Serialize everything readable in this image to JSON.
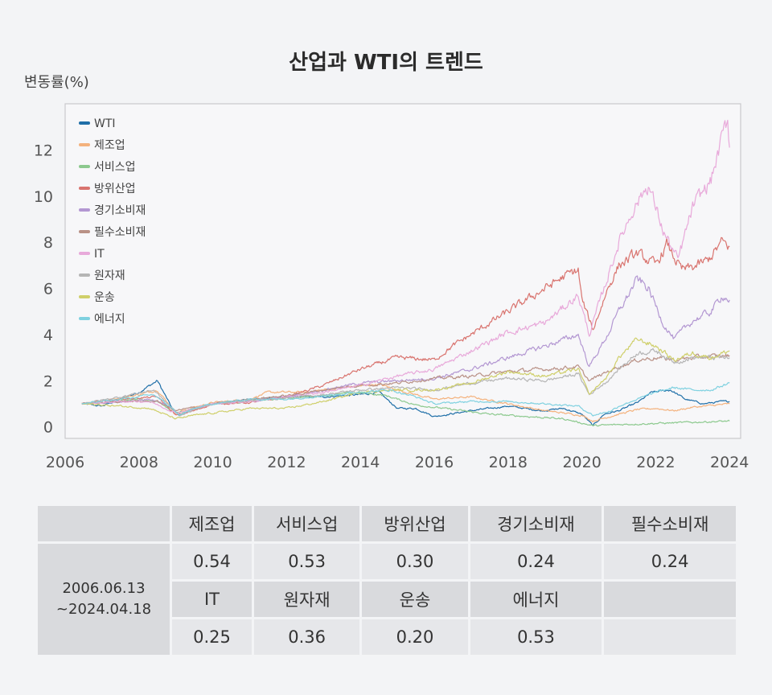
{
  "chart_data": {
    "type": "line",
    "title": "산업과 WTI의 트렌드",
    "ylabel": "변동률(%)",
    "xlim": [
      2006,
      2024.3
    ],
    "ylim": [
      -0.5,
      14
    ],
    "xticks": [
      2006,
      2008,
      2010,
      2012,
      2014,
      2016,
      2018,
      2020,
      2022,
      2024
    ],
    "yticks": [
      0,
      2,
      4,
      6,
      8,
      10,
      12
    ],
    "legend_position": "top-left",
    "series": [
      {
        "name": "WTI",
        "color": "#1f6fa8",
        "points": [
          [
            2006.45,
            1.0
          ],
          [
            2007.0,
            0.9
          ],
          [
            2007.5,
            1.2
          ],
          [
            2008.0,
            1.5
          ],
          [
            2008.5,
            2.0
          ],
          [
            2008.9,
            0.8
          ],
          [
            2009.1,
            0.5
          ],
          [
            2009.5,
            0.8
          ],
          [
            2010.0,
            1.0
          ],
          [
            2011.0,
            1.2
          ],
          [
            2012.0,
            1.3
          ],
          [
            2013.0,
            1.3
          ],
          [
            2014.0,
            1.4
          ],
          [
            2014.5,
            1.5
          ],
          [
            2015.0,
            0.8
          ],
          [
            2015.5,
            0.8
          ],
          [
            2016.0,
            0.45
          ],
          [
            2017.0,
            0.7
          ],
          [
            2018.0,
            0.9
          ],
          [
            2018.9,
            0.7
          ],
          [
            2019.5,
            0.8
          ],
          [
            2020.0,
            0.55
          ],
          [
            2020.3,
            0.05
          ],
          [
            2020.6,
            0.55
          ],
          [
            2021.0,
            0.7
          ],
          [
            2021.5,
            1.05
          ],
          [
            2021.9,
            1.5
          ],
          [
            2022.4,
            1.6
          ],
          [
            2022.8,
            1.2
          ],
          [
            2023.3,
            1.0
          ],
          [
            2023.8,
            1.1
          ],
          [
            2024.0,
            1.1
          ]
        ]
      },
      {
        "name": "제조업",
        "color": "#f4b27d",
        "points": [
          [
            2006.45,
            1.0
          ],
          [
            2007.5,
            1.25
          ],
          [
            2008.0,
            1.4
          ],
          [
            2008.5,
            1.6
          ],
          [
            2009.0,
            0.6
          ],
          [
            2009.5,
            0.85
          ],
          [
            2010.0,
            1.05
          ],
          [
            2011.0,
            1.2
          ],
          [
            2011.5,
            1.5
          ],
          [
            2012.5,
            1.5
          ],
          [
            2013.5,
            1.7
          ],
          [
            2014.5,
            1.85
          ],
          [
            2015.0,
            1.6
          ],
          [
            2016.0,
            1.2
          ],
          [
            2017.0,
            1.3
          ],
          [
            2018.0,
            1.0
          ],
          [
            2019.0,
            0.7
          ],
          [
            2020.0,
            0.5
          ],
          [
            2020.3,
            0.25
          ],
          [
            2021.0,
            0.55
          ],
          [
            2021.5,
            0.75
          ],
          [
            2022.0,
            0.8
          ],
          [
            2022.5,
            0.7
          ],
          [
            2023.0,
            0.85
          ],
          [
            2024.0,
            1.0
          ]
        ]
      },
      {
        "name": "서비스업",
        "color": "#8cc98e",
        "points": [
          [
            2006.45,
            1.0
          ],
          [
            2007.0,
            1.05
          ],
          [
            2008.0,
            1.2
          ],
          [
            2008.5,
            1.1
          ],
          [
            2009.0,
            0.6
          ],
          [
            2009.5,
            0.8
          ],
          [
            2010.0,
            1.0
          ],
          [
            2011.0,
            1.1
          ],
          [
            2012.0,
            1.25
          ],
          [
            2013.0,
            1.35
          ],
          [
            2014.0,
            1.5
          ],
          [
            2014.7,
            1.35
          ],
          [
            2015.5,
            0.95
          ],
          [
            2016.5,
            0.75
          ],
          [
            2017.5,
            0.55
          ],
          [
            2018.5,
            0.45
          ],
          [
            2019.5,
            0.35
          ],
          [
            2020.3,
            0.05
          ],
          [
            2021.0,
            0.1
          ],
          [
            2022.0,
            0.15
          ],
          [
            2023.0,
            0.2
          ],
          [
            2024.0,
            0.25
          ]
        ]
      },
      {
        "name": "방위산업",
        "color": "#d9746f",
        "points": [
          [
            2006.45,
            1.0
          ],
          [
            2007.5,
            1.2
          ],
          [
            2008.5,
            1.3
          ],
          [
            2009.0,
            0.5
          ],
          [
            2009.5,
            0.7
          ],
          [
            2010.0,
            1.0
          ],
          [
            2011.0,
            1.05
          ],
          [
            2012.0,
            1.3
          ],
          [
            2013.0,
            1.8
          ],
          [
            2014.0,
            2.5
          ],
          [
            2015.0,
            3.0
          ],
          [
            2016.0,
            2.9
          ],
          [
            2016.5,
            3.5
          ],
          [
            2017.0,
            4.0
          ],
          [
            2018.0,
            5.0
          ],
          [
            2018.5,
            5.5
          ],
          [
            2019.0,
            6.0
          ],
          [
            2019.5,
            6.5
          ],
          [
            2019.9,
            6.8
          ],
          [
            2020.0,
            5.5
          ],
          [
            2020.3,
            4.2
          ],
          [
            2020.7,
            6.0
          ],
          [
            2021.0,
            7.0
          ],
          [
            2021.5,
            7.5
          ],
          [
            2022.0,
            7.0
          ],
          [
            2022.3,
            7.9
          ],
          [
            2022.7,
            6.8
          ],
          [
            2023.0,
            6.9
          ],
          [
            2023.4,
            7.2
          ],
          [
            2023.8,
            8.0
          ],
          [
            2024.0,
            7.8
          ]
        ]
      },
      {
        "name": "경기소비재",
        "color": "#b397d2",
        "points": [
          [
            2006.45,
            1.0
          ],
          [
            2007.5,
            1.1
          ],
          [
            2008.3,
            1.2
          ],
          [
            2008.8,
            0.9
          ],
          [
            2009.1,
            0.5
          ],
          [
            2009.5,
            0.8
          ],
          [
            2010.0,
            1.0
          ],
          [
            2011.0,
            1.1
          ],
          [
            2012.0,
            1.3
          ],
          [
            2013.0,
            1.6
          ],
          [
            2014.0,
            1.9
          ],
          [
            2015.0,
            2.0
          ],
          [
            2016.0,
            2.1
          ],
          [
            2017.0,
            2.5
          ],
          [
            2018.0,
            3.0
          ],
          [
            2019.0,
            3.5
          ],
          [
            2019.9,
            4.0
          ],
          [
            2020.2,
            2.6
          ],
          [
            2020.7,
            4.0
          ],
          [
            2021.0,
            5.0
          ],
          [
            2021.5,
            6.4
          ],
          [
            2021.8,
            6.0
          ],
          [
            2022.2,
            4.5
          ],
          [
            2022.5,
            3.8
          ],
          [
            2023.0,
            4.6
          ],
          [
            2023.5,
            5.0
          ],
          [
            2023.8,
            5.7
          ],
          [
            2024.0,
            5.5
          ]
        ]
      },
      {
        "name": "필수소비재",
        "color": "#b99186",
        "points": [
          [
            2006.45,
            1.0
          ],
          [
            2007.5,
            1.1
          ],
          [
            2008.5,
            1.1
          ],
          [
            2009.0,
            0.7
          ],
          [
            2009.5,
            0.85
          ],
          [
            2010.0,
            1.0
          ],
          [
            2011.0,
            1.2
          ],
          [
            2012.0,
            1.35
          ],
          [
            2013.0,
            1.6
          ],
          [
            2014.0,
            1.8
          ],
          [
            2015.0,
            1.9
          ],
          [
            2016.0,
            2.1
          ],
          [
            2017.0,
            2.2
          ],
          [
            2018.0,
            2.4
          ],
          [
            2019.0,
            2.5
          ],
          [
            2019.9,
            2.6
          ],
          [
            2020.2,
            2.0
          ],
          [
            2020.7,
            2.4
          ],
          [
            2021.0,
            2.6
          ],
          [
            2021.5,
            2.9
          ],
          [
            2022.0,
            3.0
          ],
          [
            2022.5,
            2.9
          ],
          [
            2023.0,
            3.0
          ],
          [
            2024.0,
            3.1
          ]
        ]
      },
      {
        "name": "IT",
        "color": "#e8a9da",
        "points": [
          [
            2006.45,
            1.0
          ],
          [
            2007.5,
            1.1
          ],
          [
            2008.3,
            1.1
          ],
          [
            2009.0,
            0.6
          ],
          [
            2009.5,
            0.8
          ],
          [
            2010.0,
            1.0
          ],
          [
            2011.0,
            1.1
          ],
          [
            2012.0,
            1.3
          ],
          [
            2013.0,
            1.5
          ],
          [
            2014.0,
            1.8
          ],
          [
            2015.0,
            2.2
          ],
          [
            2016.0,
            2.5
          ],
          [
            2017.0,
            3.3
          ],
          [
            2018.0,
            4.1
          ],
          [
            2019.0,
            4.5
          ],
          [
            2019.9,
            5.7
          ],
          [
            2020.2,
            4.0
          ],
          [
            2020.6,
            6.0
          ],
          [
            2021.0,
            8.0
          ],
          [
            2021.4,
            9.5
          ],
          [
            2021.8,
            10.5
          ],
          [
            2022.2,
            8.5
          ],
          [
            2022.6,
            7.2
          ],
          [
            2023.0,
            9.5
          ],
          [
            2023.5,
            10.7
          ],
          [
            2023.8,
            12.5
          ],
          [
            2023.95,
            13.3
          ],
          [
            2024.0,
            12.1
          ]
        ]
      },
      {
        "name": "원자재",
        "color": "#b5b5b5",
        "points": [
          [
            2006.45,
            1.0
          ],
          [
            2007.5,
            1.3
          ],
          [
            2008.4,
            1.6
          ],
          [
            2008.9,
            0.8
          ],
          [
            2009.1,
            0.5
          ],
          [
            2009.5,
            0.75
          ],
          [
            2010.0,
            1.0
          ],
          [
            2011.0,
            1.15
          ],
          [
            2012.0,
            1.25
          ],
          [
            2013.0,
            1.4
          ],
          [
            2014.0,
            1.6
          ],
          [
            2015.0,
            1.7
          ],
          [
            2016.0,
            1.6
          ],
          [
            2017.0,
            1.9
          ],
          [
            2018.0,
            2.1
          ],
          [
            2019.0,
            2.0
          ],
          [
            2019.9,
            2.3
          ],
          [
            2020.2,
            1.4
          ],
          [
            2020.7,
            2.0
          ],
          [
            2021.0,
            2.5
          ],
          [
            2021.5,
            3.2
          ],
          [
            2022.0,
            3.3
          ],
          [
            2022.5,
            2.8
          ],
          [
            2023.0,
            3.0
          ],
          [
            2024.0,
            3.0
          ]
        ]
      },
      {
        "name": "운송",
        "color": "#cfcf6a",
        "points": [
          [
            2006.45,
            1.0
          ],
          [
            2007.5,
            0.9
          ],
          [
            2008.3,
            0.8
          ],
          [
            2009.0,
            0.35
          ],
          [
            2009.5,
            0.5
          ],
          [
            2010.0,
            0.6
          ],
          [
            2011.0,
            0.8
          ],
          [
            2012.0,
            0.8
          ],
          [
            2013.0,
            1.1
          ],
          [
            2014.0,
            1.5
          ],
          [
            2015.0,
            1.6
          ],
          [
            2016.0,
            1.6
          ],
          [
            2017.0,
            1.9
          ],
          [
            2018.0,
            2.4
          ],
          [
            2019.0,
            2.2
          ],
          [
            2019.9,
            2.5
          ],
          [
            2020.2,
            1.4
          ],
          [
            2020.7,
            2.2
          ],
          [
            2021.0,
            3.0
          ],
          [
            2021.5,
            3.8
          ],
          [
            2022.0,
            3.5
          ],
          [
            2022.5,
            2.9
          ],
          [
            2023.0,
            3.2
          ],
          [
            2023.5,
            3.0
          ],
          [
            2024.0,
            3.3
          ]
        ]
      },
      {
        "name": "에너지",
        "color": "#7fd1e0",
        "points": [
          [
            2006.45,
            1.0
          ],
          [
            2007.5,
            1.2
          ],
          [
            2008.4,
            1.4
          ],
          [
            2008.9,
            0.8
          ],
          [
            2009.1,
            0.5
          ],
          [
            2009.5,
            0.8
          ],
          [
            2010.0,
            1.0
          ],
          [
            2011.0,
            1.2
          ],
          [
            2012.0,
            1.2
          ],
          [
            2013.0,
            1.35
          ],
          [
            2014.0,
            1.5
          ],
          [
            2014.8,
            1.6
          ],
          [
            2015.5,
            1.3
          ],
          [
            2016.0,
            1.0
          ],
          [
            2017.0,
            1.1
          ],
          [
            2018.0,
            1.1
          ],
          [
            2019.0,
            1.0
          ],
          [
            2019.9,
            0.9
          ],
          [
            2020.3,
            0.5
          ],
          [
            2020.8,
            0.7
          ],
          [
            2021.0,
            0.9
          ],
          [
            2021.5,
            1.2
          ],
          [
            2022.0,
            1.5
          ],
          [
            2022.5,
            1.7
          ],
          [
            2023.0,
            1.6
          ],
          [
            2023.5,
            1.6
          ],
          [
            2024.0,
            1.9
          ]
        ]
      }
    ]
  },
  "table": {
    "period": [
      "2006.06.13",
      "~2024.04.18"
    ],
    "header1": [
      "제조업",
      "서비스업",
      "방위산업",
      "경기소비재",
      "필수소비재"
    ],
    "values1": [
      "0.54",
      "0.53",
      "0.30",
      "0.24",
      "0.24"
    ],
    "header2": [
      "IT",
      "원자재",
      "운송",
      "에너지",
      ""
    ],
    "values2": [
      "0.25",
      "0.36",
      "0.20",
      "0.53",
      ""
    ]
  }
}
